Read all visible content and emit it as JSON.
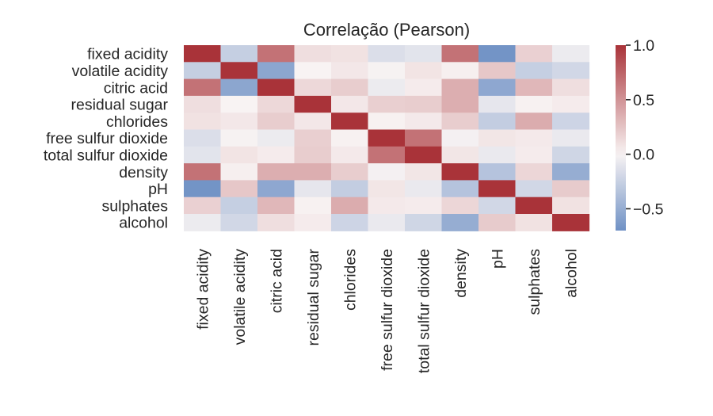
{
  "chart_data": {
    "type": "heatmap",
    "title": "Correlação (Pearson)",
    "xlabel": "",
    "ylabel": "",
    "rows": [
      "fixed acidity",
      "volatile acidity",
      "citric acid",
      "residual sugar",
      "chlorides",
      "free sulfur dioxide",
      "total sulfur dioxide",
      "density",
      "pH",
      "sulphates",
      "alcohol"
    ],
    "columns": [
      "fixed acidity",
      "volatile acidity",
      "citric acid",
      "residual sugar",
      "chlorides",
      "free sulfur dioxide",
      "total sulfur dioxide",
      "density",
      "pH",
      "sulphates",
      "alcohol"
    ],
    "values": [
      [
        1.0,
        -0.26,
        0.67,
        0.11,
        0.09,
        -0.15,
        -0.11,
        0.67,
        -0.68,
        0.18,
        -0.06
      ],
      [
        -0.26,
        1.0,
        -0.55,
        0.0,
        0.06,
        -0.01,
        0.08,
        0.02,
        0.23,
        -0.26,
        -0.2
      ],
      [
        0.67,
        -0.55,
        1.0,
        0.14,
        0.2,
        -0.06,
        0.04,
        0.36,
        -0.54,
        0.31,
        0.11
      ],
      [
        0.11,
        0.0,
        0.14,
        1.0,
        0.06,
        0.19,
        0.2,
        0.36,
        -0.09,
        0.01,
        0.04
      ],
      [
        0.09,
        0.06,
        0.2,
        0.06,
        1.0,
        0.01,
        0.05,
        0.2,
        -0.27,
        0.37,
        -0.22
      ],
      [
        -0.15,
        -0.01,
        -0.06,
        0.19,
        0.01,
        1.0,
        0.67,
        -0.02,
        0.07,
        0.05,
        -0.07
      ],
      [
        -0.11,
        0.08,
        0.04,
        0.2,
        0.05,
        0.67,
        1.0,
        0.07,
        -0.07,
        0.04,
        -0.21
      ],
      [
        0.67,
        0.02,
        0.36,
        0.36,
        0.2,
        -0.02,
        0.07,
        1.0,
        -0.34,
        0.15,
        -0.5
      ],
      [
        -0.68,
        0.23,
        -0.54,
        -0.09,
        -0.27,
        0.07,
        -0.07,
        -0.34,
        1.0,
        -0.2,
        0.21
      ],
      [
        0.18,
        -0.26,
        0.31,
        0.01,
        0.37,
        0.05,
        0.04,
        0.15,
        -0.2,
        1.0,
        0.09
      ],
      [
        -0.06,
        -0.2,
        0.11,
        0.04,
        -0.22,
        -0.07,
        -0.21,
        -0.5,
        0.21,
        0.09,
        1.0
      ]
    ],
    "vmin": -0.7,
    "vmax": 1.0,
    "colormap": "vlag",
    "colorbar_ticks": [
      {
        "value": 1.0,
        "label": "1.0"
      },
      {
        "value": 0.5,
        "label": "0.5"
      },
      {
        "value": 0.0,
        "label": "0.0"
      },
      {
        "value": -0.5,
        "label": "−0.5"
      }
    ],
    "colors": {
      "low": "#6f91c5",
      "mid": "#f8f3f3",
      "high": "#a93339",
      "text": "#262626"
    }
  }
}
